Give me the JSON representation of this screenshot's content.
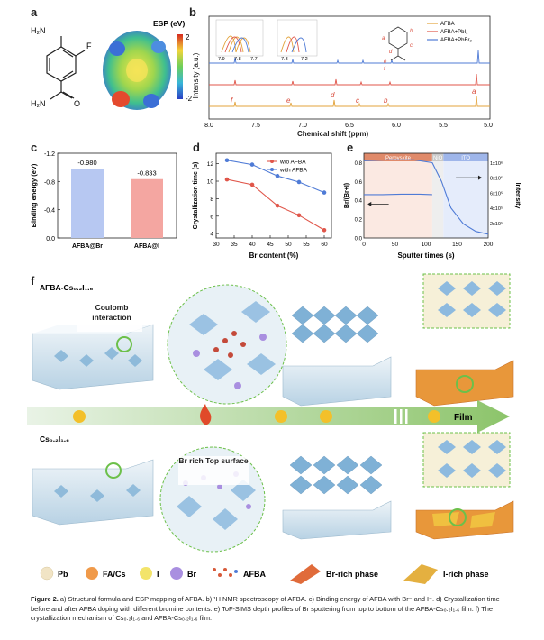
{
  "panels": {
    "a": {
      "label": "a",
      "amine_group": "H₂N",
      "fluoro_group": "F",
      "amide_group": "H₂N",
      "amide_o": "O",
      "esp_title": "ESP (eV)",
      "esp_max": "2",
      "esp_min": "-2"
    },
    "b": {
      "label": "b",
      "legend": [
        "AFBA",
        "AFBA+PbI₂",
        "AFBA+PbBr₂"
      ],
      "colors": [
        "#e3a33b",
        "#e0564a",
        "#4f7bd6"
      ],
      "inset_ticks_left": [
        "7.9",
        "7.8",
        "7.7"
      ],
      "inset_ticks_right": [
        "7.3",
        "7.2"
      ],
      "peak_letters": [
        "f",
        "e",
        "d",
        "c",
        "b",
        "a"
      ],
      "struct_letters": [
        "a",
        "b",
        "c",
        "d",
        "e",
        "f"
      ],
      "xlabel": "Chemical shift (ppm)",
      "ylabel": "Intensity (a.u.)",
      "xticks": [
        "8.0",
        "7.5",
        "7.0",
        "6.5",
        "6.0",
        "5.5",
        "5.0"
      ]
    }
  },
  "chart_data": [
    {
      "type": "bar",
      "panel": "c",
      "categories": [
        "AFBA@Br",
        "AFBA@I"
      ],
      "values": [
        -0.98,
        -0.833
      ],
      "value_labels": [
        "-0.980",
        "-0.833"
      ],
      "ylabel": "Binding energy (eV)",
      "yticks": [
        "-1.2",
        "-0.8",
        "-0.4",
        "0.0"
      ],
      "ylim": [
        -1.2,
        0.0
      ],
      "colors": [
        "#b7c8f2",
        "#f4a6a1"
      ]
    },
    {
      "type": "line",
      "panel": "d",
      "x": [
        33,
        40,
        47,
        53,
        60
      ],
      "series": [
        {
          "name": "w/o AFBA",
          "values": [
            10.2,
            9.6,
            7.2,
            6.1,
            4.4
          ],
          "color": "#e0564a"
        },
        {
          "name": "with AFBA",
          "values": [
            12.4,
            11.9,
            10.6,
            9.9,
            8.7
          ],
          "color": "#4f7bd6"
        }
      ],
      "xlabel": "Br content (%)",
      "ylabel": "Crystallization time (s)",
      "xticks": [
        "30",
        "35",
        "40",
        "45",
        "50",
        "55",
        "60"
      ],
      "yticks": [
        "4",
        "6",
        "8",
        "10",
        "12"
      ],
      "xlim": [
        30,
        62
      ],
      "ylim": [
        3.5,
        13.2
      ]
    },
    {
      "type": "line",
      "panel": "e",
      "regions": [
        "Perovskite",
        "NiO",
        "ITO"
      ],
      "region_bounds": [
        [
          0,
          110
        ],
        [
          110,
          128
        ],
        [
          128,
          200
        ]
      ],
      "xlabel": "Sputter times (s)",
      "ylabel": "Br/(Br+I)",
      "y2label": "Intensity",
      "xticks": [
        "0",
        "50",
        "100",
        "150",
        "200"
      ],
      "yticks": [
        "0.0",
        "0.2",
        "0.4",
        "0.6",
        "0.8"
      ],
      "y2ticks": [
        "2x10⁵",
        "4x10⁵",
        "6x10⁵",
        "8x10⁵",
        "1x10⁶"
      ],
      "xlim": [
        0,
        200
      ],
      "ylim": [
        0,
        0.9
      ],
      "series": [
        {
          "name": "Br/(Br+I)",
          "x": [
            0,
            30,
            60,
            90,
            110
          ],
          "values": [
            0.46,
            0.46,
            0.465,
            0.465,
            0.46
          ]
        },
        {
          "name": "Intensity",
          "x": [
            0,
            40,
            80,
            110,
            125,
            140,
            160,
            180,
            200
          ],
          "values": [
            0.82,
            0.83,
            0.83,
            0.8,
            0.6,
            0.32,
            0.15,
            0.07,
            0.04
          ]
        }
      ]
    }
  ],
  "panel_f": {
    "label": "f",
    "top_label": "AFBA-Cs₀.₂I₁.₆",
    "bottom_label": "Cs₀.₂I₁.₆",
    "coulomb_label": "Coulomb interaction",
    "br_label": "Br rich Top surface",
    "film_label": "Film",
    "legend": [
      {
        "name": "Pb",
        "color": "#f1e4c5"
      },
      {
        "name": "FA/Cs",
        "color": "#f09a4a"
      },
      {
        "name": "I",
        "color": "#f3e46a"
      },
      {
        "name": "Br",
        "color": "#a98fe0"
      },
      {
        "name": "AFBA",
        "color": "#d75a3a"
      },
      {
        "name": "Br-rich phase",
        "color": "#e06b3a"
      },
      {
        "name": "I-rich phase",
        "color": "#e4b040"
      }
    ]
  },
  "caption": {
    "lead": "Figure 2.",
    "text": " a) Structural formula and ESP mapping of AFBA. b) ¹H NMR spectroscopy of AFBA. c) Binding energy of AFBA with Br⁻ and I⁻. d) Crystallization time before and after AFBA doping with different bromine contents. e) ToF-SIMS depth profiles of Br sputtering from top to bottom of the AFBA-Cs₀.₂I₁.₆ film. f) The crystallization mechanism of Cs₀.₂I₁.₆ and AFBA-Cs₀.₂I₁.₆ film."
  }
}
